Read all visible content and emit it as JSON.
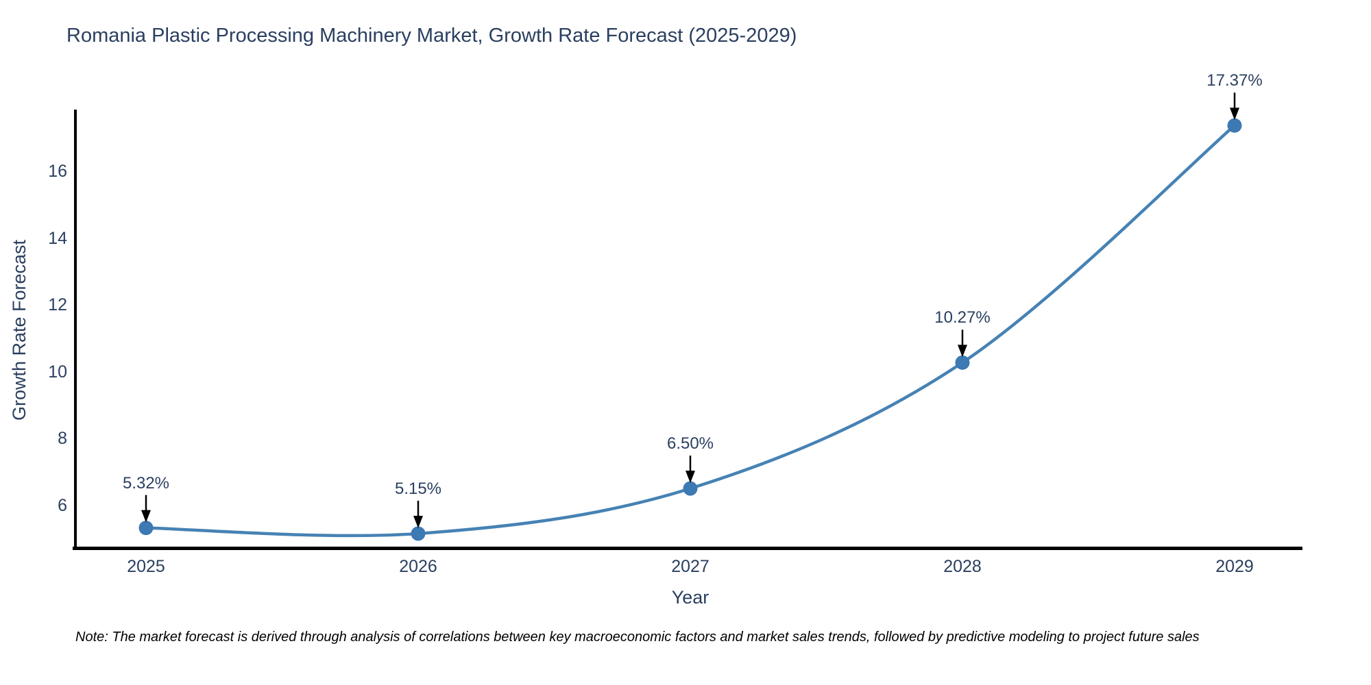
{
  "title": "Romania Plastic Processing Machinery Market, Growth Rate Forecast (2025-2029)",
  "note": "Note: The market forecast is derived through analysis of correlations between key macroeconomic factors and market sales trends, followed by predictive modeling to project future sales",
  "chart_data": {
    "type": "line",
    "title": "Romania Plastic Processing Machinery Market, Growth Rate Forecast (2025-2029)",
    "xlabel": "Year",
    "ylabel": "Growth Rate Forecast",
    "x": [
      2025,
      2026,
      2027,
      2028,
      2029
    ],
    "series": [
      {
        "name": "Growth Rate Forecast",
        "values": [
          5.32,
          5.15,
          6.5,
          10.27,
          17.37
        ]
      }
    ],
    "point_labels": [
      "5.32%",
      "5.15%",
      "6.50%",
      "10.27%",
      "17.37%"
    ],
    "y_ticks": [
      6,
      8,
      10,
      12,
      14,
      16
    ],
    "ylim": [
      4.67,
      17.8
    ],
    "line_shape": "spline",
    "grid": false,
    "legend_position": "none",
    "colors": {
      "line": "#4682b4",
      "marker": "#3d79b3",
      "text": "#2a3f5f",
      "axis_line": "#000000",
      "annotation_arrow": "#000000",
      "background": "#ffffff"
    }
  }
}
